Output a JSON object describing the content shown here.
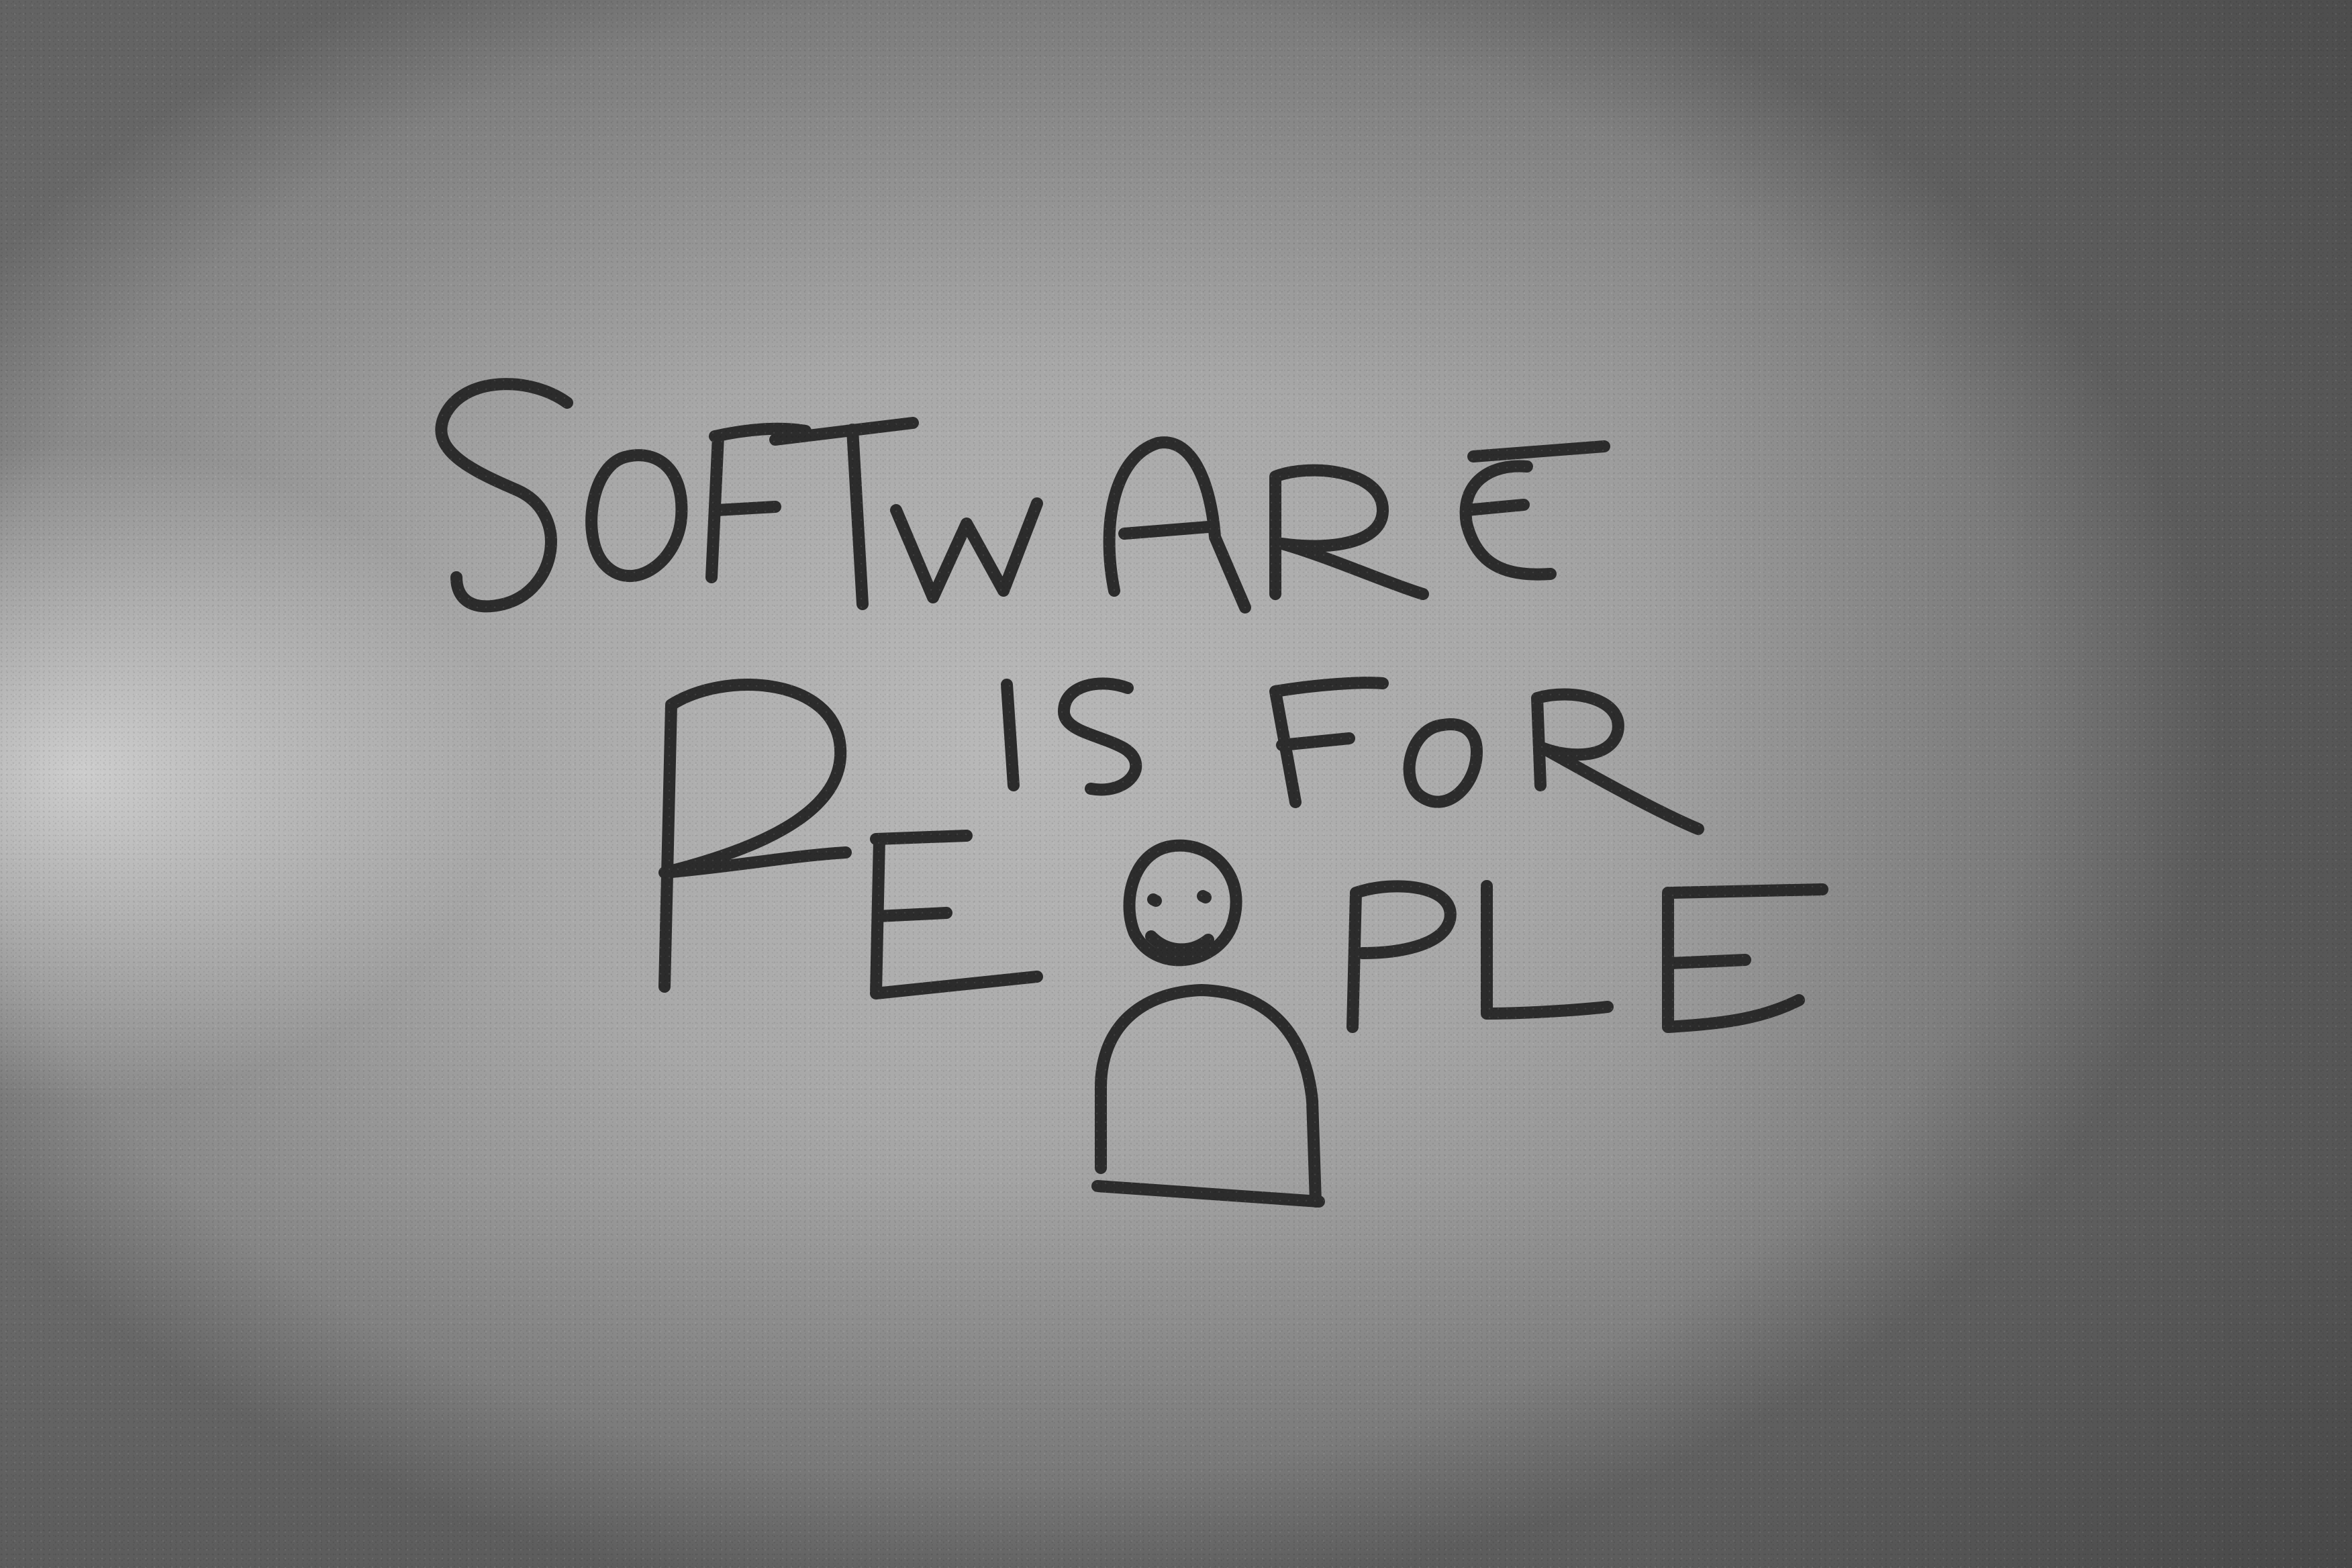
{
  "whiteboard": {
    "line1": "SOFTWARE",
    "line2": "IS FOR",
    "line3": "PEOPLE",
    "person_figure": "smiley-person-drawing"
  }
}
